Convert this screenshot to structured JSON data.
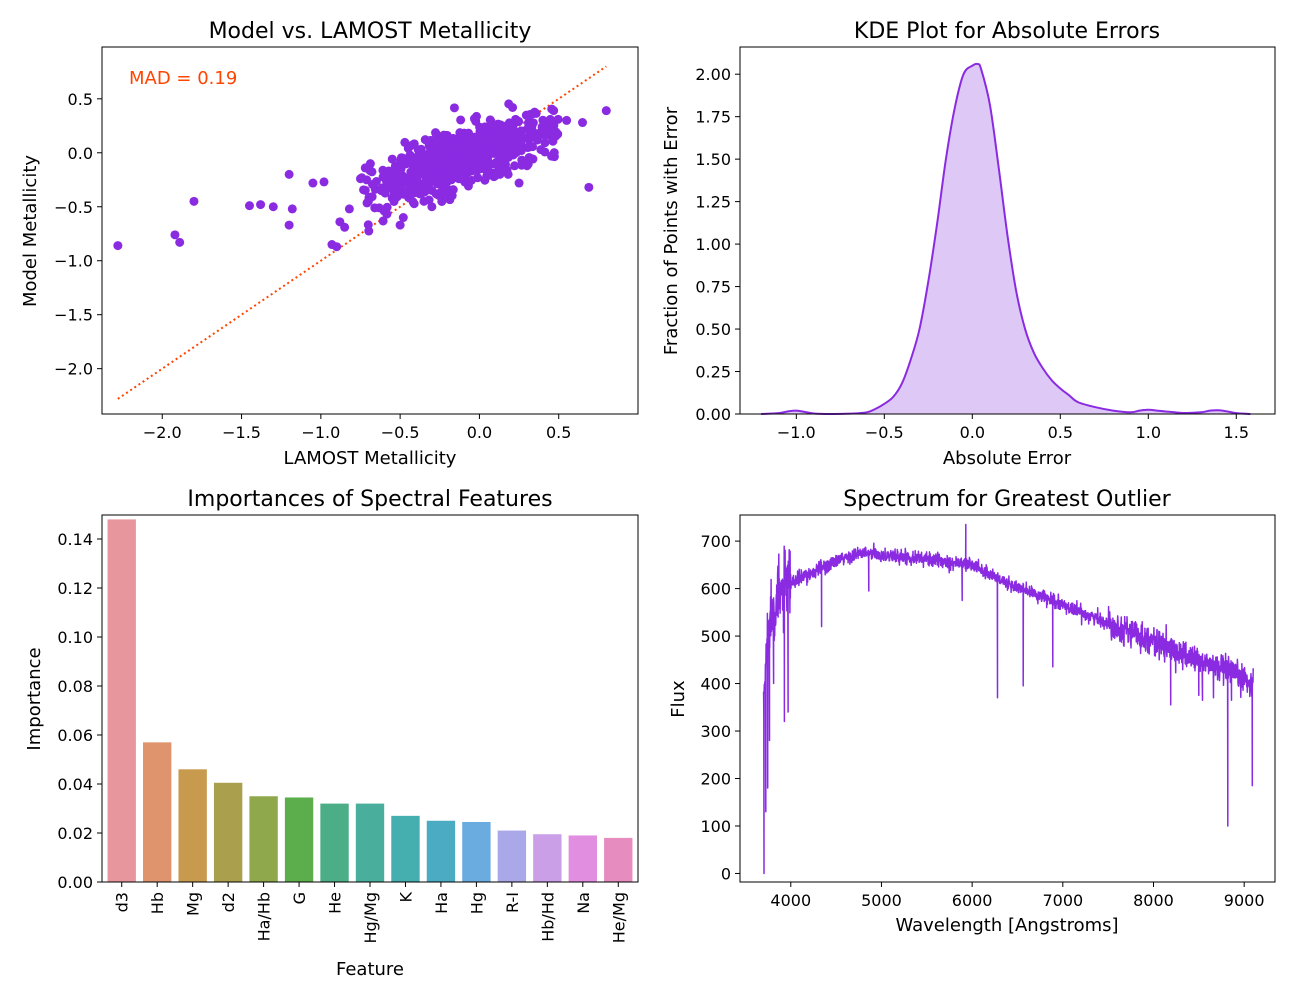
{
  "chart_data": [
    {
      "type": "scatter",
      "title": "Model vs. LAMOST Metallicity",
      "xlabel": "LAMOST Metallicity",
      "ylabel": "Model Metallicity",
      "xlim": [
        -2.38,
        1.0
      ],
      "ylim": [
        -2.42,
        0.98
      ],
      "xticks": [
        "−2.0",
        "−1.5",
        "−1.0",
        "−0.5",
        "0.0",
        "0.5"
      ],
      "xtick_values": [
        -2.0,
        -1.5,
        -1.0,
        -0.5,
        0.0,
        0.5
      ],
      "yticks": [
        "−2.0",
        "−1.5",
        "−1.0",
        "−0.5",
        "0.0",
        "0.5"
      ],
      "ytick_values": [
        -2.0,
        -1.5,
        -1.0,
        -0.5,
        0.0,
        0.5
      ],
      "annotation": "MAD = 0.19",
      "reference_line": {
        "style": "dotted",
        "from": [
          -2.28,
          -2.28
        ],
        "to": [
          0.8,
          0.8
        ]
      },
      "point_color": "#8a2be2",
      "line_color": "#ff4500",
      "outliers": {
        "x": [
          -2.28,
          -1.92,
          -1.89,
          -1.8,
          -1.45,
          -1.38,
          -1.3,
          -1.2,
          -1.18,
          -1.2,
          -1.05,
          -0.98,
          -0.93,
          -0.9,
          -0.88,
          -0.85,
          -0.82,
          -0.75,
          -0.72,
          -0.7,
          -0.66,
          -0.6,
          -0.55,
          -0.5,
          -0.48,
          -0.35,
          -0.3,
          -0.25,
          0.25,
          0.3,
          0.45,
          0.55,
          0.65,
          0.69,
          0.8
        ],
        "y": [
          -0.86,
          -0.76,
          -0.83,
          -0.45,
          -0.49,
          -0.48,
          -0.5,
          -0.2,
          -0.52,
          -0.67,
          -0.28,
          -0.27,
          -0.85,
          -0.87,
          -0.64,
          -0.69,
          -0.52,
          -0.24,
          -0.14,
          -0.45,
          -0.51,
          -0.54,
          -0.42,
          -0.67,
          -0.6,
          -0.45,
          -0.5,
          -0.4,
          -0.28,
          -0.12,
          0.2,
          0.3,
          0.28,
          -0.32,
          0.39
        ]
      },
      "cloud": {
        "center": [
          -0.1,
          -0.05
        ],
        "slope": 0.5,
        "x_spread": 0.28,
        "y_spread": 0.13,
        "n": 650
      }
    },
    {
      "type": "area",
      "title": "KDE Plot for Absolute Errors",
      "xlabel": "Absolute Error",
      "ylabel": "Fraction of Points with Error",
      "xlim": [
        -1.32,
        1.72
      ],
      "ylim": [
        0,
        2.16
      ],
      "xticks": [
        "−1.0",
        "−0.5",
        "0.0",
        "0.5",
        "1.0",
        "1.5"
      ],
      "xtick_values": [
        -1.0,
        -0.5,
        0.0,
        0.5,
        1.0,
        1.5
      ],
      "yticks": [
        "0.00",
        "0.25",
        "0.50",
        "0.75",
        "1.00",
        "1.25",
        "1.50",
        "1.75",
        "2.00"
      ],
      "ytick_values": [
        0,
        0.25,
        0.5,
        0.75,
        1.0,
        1.25,
        1.5,
        1.75,
        2.0
      ],
      "x": [
        -1.2,
        -1.1,
        -1.05,
        -1.0,
        -0.95,
        -0.9,
        -0.8,
        -0.7,
        -0.6,
        -0.55,
        -0.5,
        -0.45,
        -0.4,
        -0.35,
        -0.3,
        -0.25,
        -0.2,
        -0.15,
        -0.1,
        -0.05,
        0.0,
        0.03,
        0.05,
        0.1,
        0.15,
        0.2,
        0.25,
        0.3,
        0.35,
        0.4,
        0.45,
        0.5,
        0.55,
        0.6,
        0.7,
        0.8,
        0.9,
        0.95,
        1.0,
        1.05,
        1.1,
        1.2,
        1.3,
        1.35,
        1.4,
        1.45,
        1.5,
        1.58
      ],
      "y": [
        0.0,
        0.005,
        0.015,
        0.02,
        0.012,
        0.003,
        0.0,
        0.002,
        0.01,
        0.03,
        0.06,
        0.1,
        0.18,
        0.32,
        0.5,
        0.78,
        1.12,
        1.5,
        1.8,
        2.0,
        2.05,
        2.06,
        2.03,
        1.82,
        1.45,
        1.05,
        0.72,
        0.5,
        0.36,
        0.27,
        0.2,
        0.15,
        0.11,
        0.07,
        0.04,
        0.02,
        0.01,
        0.02,
        0.025,
        0.02,
        0.015,
        0.006,
        0.01,
        0.02,
        0.022,
        0.015,
        0.005,
        0.0
      ],
      "line_color": "#8a2be2",
      "fill_color": "#dec8f5"
    },
    {
      "type": "bar",
      "title": "Importances of Spectral Features",
      "xlabel": "Feature",
      "ylabel": "Importance",
      "ylim": [
        0,
        0.1498
      ],
      "yticks": [
        "0.00",
        "0.02",
        "0.04",
        "0.06",
        "0.08",
        "0.10",
        "0.12",
        "0.14"
      ],
      "ytick_values": [
        0,
        0.02,
        0.04,
        0.06,
        0.08,
        0.1,
        0.12,
        0.14
      ],
      "categories": [
        "d3",
        "Hb",
        "Mg",
        "d2",
        "Ha/Hb",
        "G",
        "He",
        "Hg/Mg",
        "K",
        "Ha",
        "Hg",
        "R-I",
        "Hb/Hd",
        "Na",
        "He/Mg"
      ],
      "values": [
        0.148,
        0.057,
        0.046,
        0.0405,
        0.035,
        0.0345,
        0.032,
        0.032,
        0.027,
        0.025,
        0.0245,
        0.021,
        0.0195,
        0.019,
        0.018
      ],
      "colors": [
        "#e8969e",
        "#e0946d",
        "#c89a4e",
        "#aa9f4c",
        "#8fa84c",
        "#5cae4c",
        "#4bae86",
        "#49ae9b",
        "#45aeae",
        "#4aabc3",
        "#6aace0",
        "#aba8ea",
        "#cb9ee8",
        "#e28ee0",
        "#e68cbf"
      ]
    },
    {
      "type": "line",
      "title": "Spectrum for Greatest Outlier",
      "xlabel": "Wavelength [Angstroms]",
      "ylabel": "Flux",
      "xlim": [
        3440,
        9340
      ],
      "ylim": [
        -18,
        755
      ],
      "xticks": [
        "4000",
        "5000",
        "6000",
        "7000",
        "8000",
        "9000"
      ],
      "xtick_values": [
        4000,
        5000,
        6000,
        7000,
        8000,
        9000
      ],
      "yticks": [
        "0",
        "100",
        "200",
        "300",
        "400",
        "500",
        "600",
        "700"
      ],
      "ytick_values": [
        0,
        100,
        200,
        300,
        400,
        500,
        600,
        700
      ],
      "line_color": "#8a2be2",
      "continuum": {
        "x": [
          3700,
          3750,
          3800,
          3900,
          4000,
          4200,
          4400,
          4600,
          4800,
          5000,
          5400,
          5800,
          6000,
          6200,
          6400,
          6600,
          6800,
          7000,
          7200,
          7400,
          7600,
          7800,
          8000,
          8200,
          8400,
          8600,
          8800,
          9000,
          9100
        ],
        "y": [
          350,
          520,
          560,
          590,
          610,
          630,
          650,
          665,
          675,
          670,
          665,
          655,
          650,
          630,
          610,
          595,
          580,
          565,
          550,
          535,
          520,
          505,
          490,
          470,
          455,
          440,
          425,
          410,
          400
        ]
      },
      "features": [
        {
          "x": 3705,
          "y": 0
        },
        {
          "x": 3725,
          "y": 130
        },
        {
          "x": 3745,
          "y": 180
        },
        {
          "x": 3765,
          "y": 280
        },
        {
          "x": 3810,
          "y": 400
        },
        {
          "x": 3930,
          "y": 320
        },
        {
          "x": 3970,
          "y": 340
        },
        {
          "x": 4340,
          "y": 520
        },
        {
          "x": 4860,
          "y": 595
        },
        {
          "x": 5890,
          "y": 575
        },
        {
          "x": 5930,
          "y": 735
        },
        {
          "x": 6280,
          "y": 370
        },
        {
          "x": 6563,
          "y": 395
        },
        {
          "x": 6890,
          "y": 435
        },
        {
          "x": 8190,
          "y": 355
        },
        {
          "x": 8500,
          "y": 375
        },
        {
          "x": 8540,
          "y": 365
        },
        {
          "x": 8662,
          "y": 370
        },
        {
          "x": 8820,
          "y": 100
        },
        {
          "x": 8860,
          "y": 365
        },
        {
          "x": 9090,
          "y": 185
        }
      ]
    }
  ]
}
